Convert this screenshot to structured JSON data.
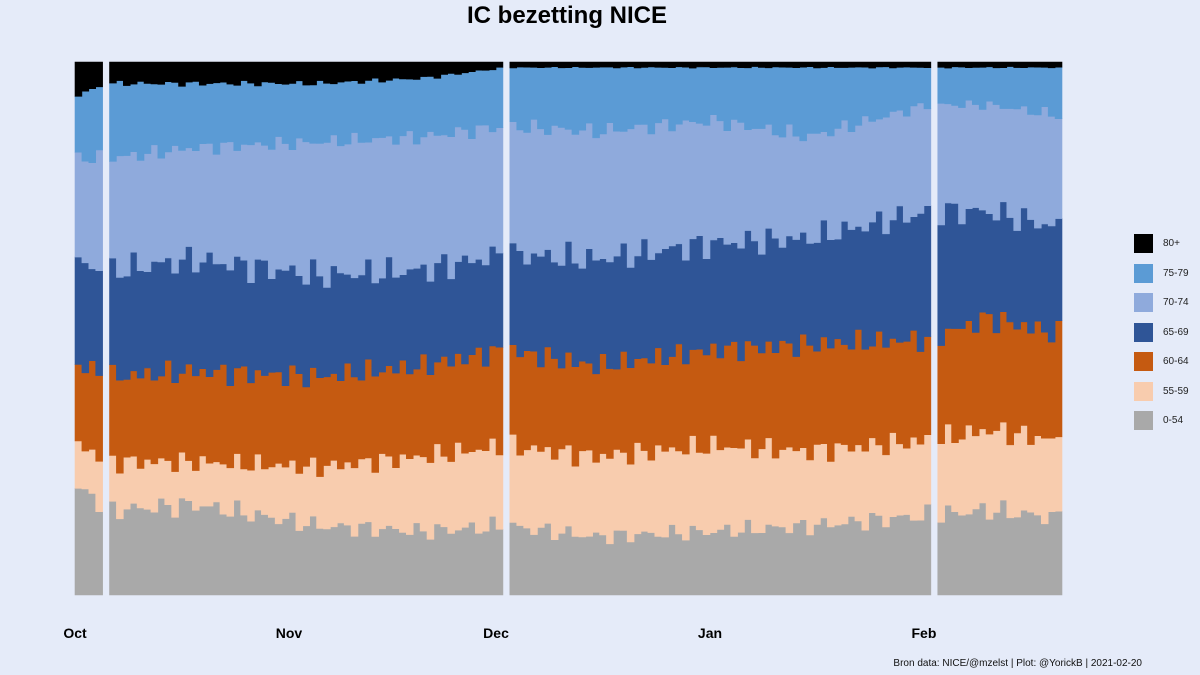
{
  "title": "IC bezetting NICE",
  "caption": "Bron data: NICE/@mzelst  | Plot: @YorickB |  2021-02-20",
  "chart_data": {
    "type": "area",
    "stacked": "normalized",
    "x_range": [
      "2020-10-01",
      "2021-02-20"
    ],
    "x_ticks": [
      {
        "label": "Oct",
        "date": "2020-10-01"
      },
      {
        "label": "Nov",
        "date": "2020-11-01"
      },
      {
        "label": "Dec",
        "date": "2020-12-01"
      },
      {
        "label": "Jan",
        "date": "2021-01-01"
      },
      {
        "label": "Feb",
        "date": "2021-02-01"
      }
    ],
    "gaps": [
      "2020-10-05",
      "2020-12-02",
      "2021-02-02"
    ],
    "ylim": [
      0,
      1
    ],
    "grid": false,
    "legend": "right",
    "series": [
      {
        "name": "0-54",
        "color": "#a9a9a9",
        "keyframes": [
          [
            "2020-10-01",
            0.2
          ],
          [
            "2020-10-06",
            0.16
          ],
          [
            "2020-10-18",
            0.17
          ],
          [
            "2020-11-05",
            0.13
          ],
          [
            "2020-11-20",
            0.12
          ],
          [
            "2020-12-02",
            0.13
          ],
          [
            "2020-12-15",
            0.11
          ],
          [
            "2021-01-01",
            0.12
          ],
          [
            "2021-01-15",
            0.13
          ],
          [
            "2021-02-01",
            0.15
          ],
          [
            "2021-02-10",
            0.16
          ],
          [
            "2021-02-20",
            0.145
          ]
        ]
      },
      {
        "name": "55-59",
        "color": "#f8ccae",
        "keyframes": [
          [
            "2020-10-01",
            0.08
          ],
          [
            "2020-10-06",
            0.09
          ],
          [
            "2020-10-18",
            0.08
          ],
          [
            "2020-11-05",
            0.11
          ],
          [
            "2020-11-20",
            0.14
          ],
          [
            "2020-12-02",
            0.15
          ],
          [
            "2020-12-15",
            0.15
          ],
          [
            "2021-01-01",
            0.16
          ],
          [
            "2021-01-15",
            0.14
          ],
          [
            "2021-02-01",
            0.14
          ],
          [
            "2021-02-10",
            0.15
          ],
          [
            "2021-02-20",
            0.145
          ]
        ]
      },
      {
        "name": "60-64",
        "color": "#c55a11",
        "keyframes": [
          [
            "2020-10-01",
            0.15
          ],
          [
            "2020-10-06",
            0.16
          ],
          [
            "2020-10-18",
            0.17
          ],
          [
            "2020-11-05",
            0.17
          ],
          [
            "2020-11-20",
            0.17
          ],
          [
            "2020-12-02",
            0.18
          ],
          [
            "2020-12-15",
            0.17
          ],
          [
            "2021-01-01",
            0.18
          ],
          [
            "2021-01-15",
            0.2
          ],
          [
            "2021-02-01",
            0.19
          ],
          [
            "2021-02-10",
            0.21
          ],
          [
            "2021-02-20",
            0.2
          ]
        ]
      },
      {
        "name": "65-69",
        "color": "#2f5597",
        "keyframes": [
          [
            "2020-10-01",
            0.19
          ],
          [
            "2020-10-06",
            0.2
          ],
          [
            "2020-10-18",
            0.21
          ],
          [
            "2020-11-05",
            0.19
          ],
          [
            "2020-11-20",
            0.18
          ],
          [
            "2020-12-02",
            0.18
          ],
          [
            "2020-12-15",
            0.2
          ],
          [
            "2021-01-01",
            0.2
          ],
          [
            "2021-01-15",
            0.2
          ],
          [
            "2021-02-01",
            0.24
          ],
          [
            "2021-02-10",
            0.2
          ],
          [
            "2021-02-20",
            0.2
          ]
        ]
      },
      {
        "name": "70-74",
        "color": "#8faadc",
        "keyframes": [
          [
            "2020-10-01",
            0.2
          ],
          [
            "2020-10-06",
            0.21
          ],
          [
            "2020-10-18",
            0.21
          ],
          [
            "2020-11-05",
            0.25
          ],
          [
            "2020-11-20",
            0.25
          ],
          [
            "2020-12-02",
            0.24
          ],
          [
            "2020-12-15",
            0.24
          ],
          [
            "2021-01-01",
            0.23
          ],
          [
            "2021-01-15",
            0.19
          ],
          [
            "2021-02-01",
            0.2
          ],
          [
            "2021-02-10",
            0.2
          ],
          [
            "2021-02-20",
            0.21
          ]
        ]
      },
      {
        "name": "75-79",
        "color": "#5b9bd5",
        "keyframes": [
          [
            "2020-10-01",
            0.12
          ],
          [
            "2020-10-06",
            0.14
          ],
          [
            "2020-10-18",
            0.12
          ],
          [
            "2020-11-05",
            0.11
          ],
          [
            "2020-11-20",
            0.11
          ],
          [
            "2020-12-02",
            0.11
          ],
          [
            "2020-12-15",
            0.12
          ],
          [
            "2021-01-01",
            0.1
          ],
          [
            "2021-01-15",
            0.13
          ],
          [
            "2021-02-01",
            0.07
          ],
          [
            "2021-02-10",
            0.07
          ],
          [
            "2021-02-20",
            0.09
          ]
        ]
      },
      {
        "name": "80+",
        "color": "#000000",
        "keyframes": [
          [
            "2020-10-01",
            0.06
          ],
          [
            "2020-10-06",
            0.04
          ],
          [
            "2020-10-18",
            0.04
          ],
          [
            "2020-11-05",
            0.04
          ],
          [
            "2020-11-20",
            0.03
          ],
          [
            "2020-12-02",
            0.01
          ],
          [
            "2020-12-15",
            0.01
          ],
          [
            "2021-01-01",
            0.01
          ],
          [
            "2021-01-15",
            0.01
          ],
          [
            "2021-02-01",
            0.01
          ],
          [
            "2021-02-10",
            0.01
          ],
          [
            "2021-02-20",
            0.01
          ]
        ]
      }
    ]
  }
}
